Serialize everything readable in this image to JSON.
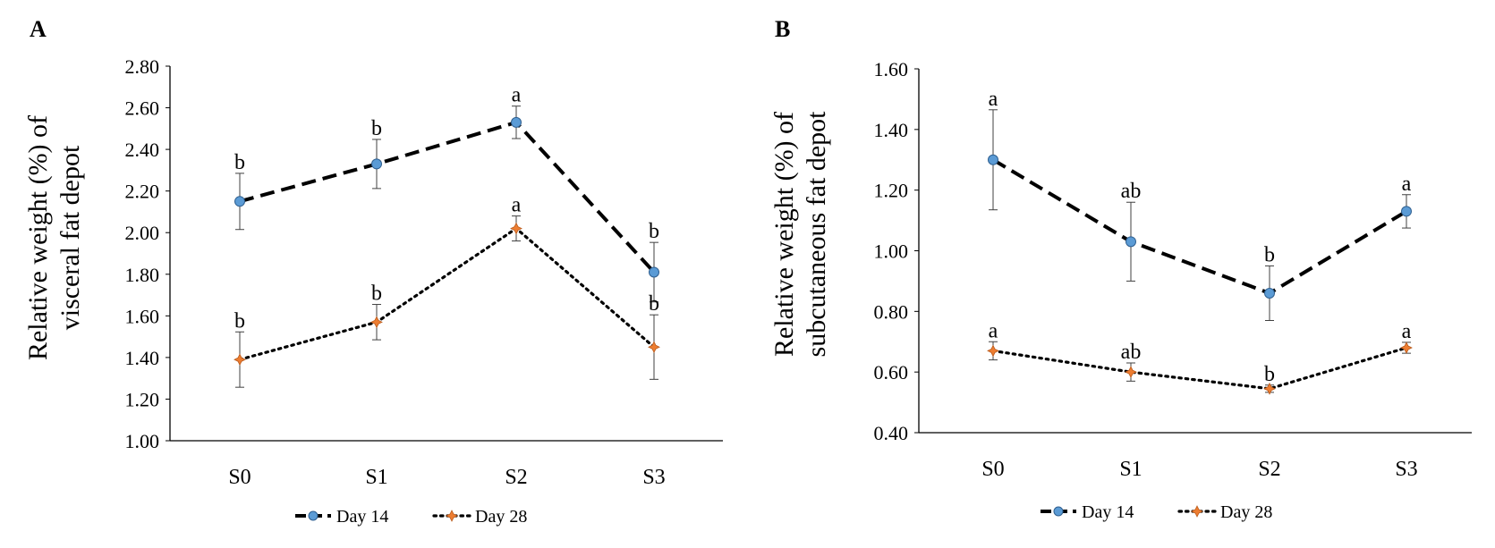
{
  "chart_data": [
    {
      "type": "line",
      "panel_label": "A",
      "ylabel_lines": [
        "Relative weight (%) of",
        "visceral fat depot"
      ],
      "categories": [
        "S0",
        "S1",
        "S2",
        "S3"
      ],
      "ylim": [
        1.0,
        2.8
      ],
      "yticks": [
        "1.00",
        "1.20",
        "1.40",
        "1.60",
        "1.80",
        "2.00",
        "2.20",
        "2.40",
        "2.60",
        "2.80"
      ],
      "ytick_values": [
        1.0,
        1.2,
        1.4,
        1.6,
        1.8,
        2.0,
        2.2,
        2.4,
        2.6,
        2.8
      ],
      "grid": false,
      "legend_position": "bottom",
      "series": [
        {
          "name": "Day 14",
          "color": "#5b9bd5",
          "line_style": "dashed",
          "values": [
            2.15,
            2.33,
            2.53,
            1.81
          ],
          "errors": [
            0.135,
            0.118,
            0.078,
            0.143
          ],
          "labels": [
            "b",
            "b",
            "a",
            "b"
          ]
        },
        {
          "name": "Day 28",
          "color": "#ed7d31",
          "line_style": "dotted",
          "values": [
            1.39,
            1.57,
            2.02,
            1.45
          ],
          "errors": [
            0.133,
            0.085,
            0.06,
            0.155
          ],
          "labels": [
            "b",
            "b",
            "a",
            "b"
          ]
        }
      ]
    },
    {
      "type": "line",
      "panel_label": "B",
      "ylabel_lines": [
        "Relative weight (%) of",
        "subcutaneous fat depot"
      ],
      "categories": [
        "S0",
        "S1",
        "S2",
        "S3"
      ],
      "ylim": [
        0.4,
        1.6
      ],
      "yticks": [
        "0.40",
        "0.60",
        "0.80",
        "1.00",
        "1.20",
        "1.40",
        "1.60"
      ],
      "ytick_values": [
        0.4,
        0.6,
        0.8,
        1.0,
        1.2,
        1.4,
        1.6
      ],
      "grid": false,
      "legend_position": "bottom",
      "series": [
        {
          "name": "Day 14",
          "color": "#5b9bd5",
          "line_style": "dashed",
          "values": [
            1.3,
            1.03,
            0.86,
            1.13
          ],
          "errors": [
            0.165,
            0.13,
            0.09,
            0.055
          ],
          "labels": [
            "a",
            "ab",
            "b",
            "a"
          ]
        },
        {
          "name": "Day 28",
          "color": "#ed7d31",
          "line_style": "dotted",
          "values": [
            0.67,
            0.6,
            0.545,
            0.68
          ],
          "errors": [
            0.03,
            0.03,
            0.012,
            0.018
          ],
          "labels": [
            "a",
            "ab",
            "b",
            "a"
          ]
        }
      ]
    }
  ]
}
